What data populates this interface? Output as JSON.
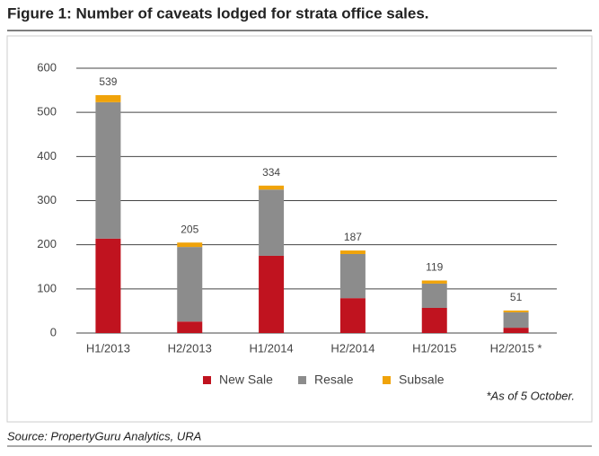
{
  "chart_data": {
    "type": "stacked_bar",
    "title": "Figure 1: Number of caveats lodged for strata office sales.",
    "categories": [
      "H1/2013",
      "H2/2013",
      "H1/2014",
      "H2/2014",
      "H1/2015",
      "H2/2015 *"
    ],
    "series": [
      {
        "name": "New Sale",
        "color": "#c0131f",
        "values": [
          214,
          26,
          175,
          79,
          57,
          12
        ]
      },
      {
        "name": "Resale",
        "color": "#8c8c8c",
        "values": [
          309,
          169,
          150,
          100,
          55,
          35
        ]
      },
      {
        "name": "Subsale",
        "color": "#f0a30a",
        "values": [
          16,
          10,
          9,
          8,
          7,
          4
        ]
      }
    ],
    "totals": [
      539,
      205,
      334,
      187,
      119,
      51
    ],
    "ylim": [
      0,
      600
    ],
    "yticks": [
      0,
      100,
      200,
      300,
      400,
      500,
      600
    ],
    "grid": true,
    "note": "*As of 5 October.",
    "source": "Source: PropertyGuru Analytics, URA"
  }
}
